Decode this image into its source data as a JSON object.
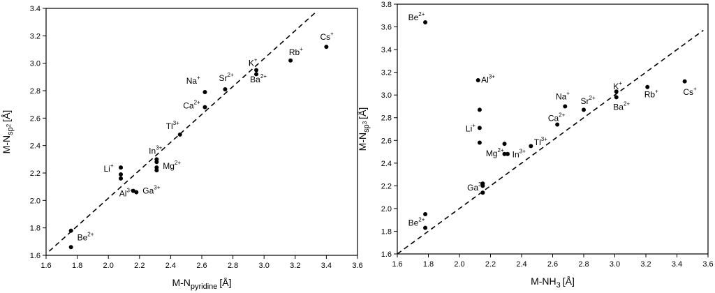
{
  "chart_data": [
    {
      "type": "scatter",
      "xlabel": {
        "main": "M-N",
        "sub": "pyridine",
        "unit": "[Å]"
      },
      "ylabel": {
        "main": "M-N",
        "sub": "sp",
        "subsub": "2",
        "unit": "[Å]"
      },
      "xlim": [
        1.6,
        3.6
      ],
      "ylim": [
        1.6,
        3.4
      ],
      "xticks": [
        "1.6",
        "1.8",
        "2.0",
        "2.2",
        "2.4",
        "2.6",
        "2.8",
        "3.0",
        "3.2",
        "3.4",
        "3.6"
      ],
      "yticks": [
        "1.6",
        "1.8",
        "2.0",
        "2.2",
        "2.4",
        "2.6",
        "2.8",
        "3.0",
        "3.2",
        "3.4"
      ],
      "points": [
        {
          "x": 1.76,
          "y": 1.78
        },
        {
          "x": 1.76,
          "y": 1.66
        },
        {
          "x": 2.08,
          "y": 2.24
        },
        {
          "x": 2.08,
          "y": 2.19
        },
        {
          "x": 2.08,
          "y": 2.16
        },
        {
          "x": 2.16,
          "y": 2.07
        },
        {
          "x": 2.18,
          "y": 2.06
        },
        {
          "x": 2.31,
          "y": 2.3
        },
        {
          "x": 2.31,
          "y": 2.28
        },
        {
          "x": 2.31,
          "y": 2.24
        },
        {
          "x": 2.31,
          "y": 2.22
        },
        {
          "x": 2.46,
          "y": 2.48
        },
        {
          "x": 2.62,
          "y": 2.79
        },
        {
          "x": 2.62,
          "y": 2.68
        },
        {
          "x": 2.75,
          "y": 2.81
        },
        {
          "x": 2.95,
          "y": 2.95
        },
        {
          "x": 2.95,
          "y": 2.92
        },
        {
          "x": 3.17,
          "y": 3.02
        },
        {
          "x": 3.4,
          "y": 3.12
        }
      ],
      "labels": [
        {
          "text": "Be",
          "sup": "2+",
          "x": 1.8,
          "y": 1.71
        },
        {
          "text": "Li",
          "sup": "+",
          "x": 1.97,
          "y": 2.21
        },
        {
          "text": "Al",
          "sup": "3+",
          "x": 2.07,
          "y": 2.03
        },
        {
          "text": "Ga",
          "sup": "3+",
          "x": 2.22,
          "y": 2.05
        },
        {
          "text": "In",
          "sup": "3+",
          "x": 2.26,
          "y": 2.34
        },
        {
          "text": "Mg",
          "sup": "2+",
          "x": 2.35,
          "y": 2.23
        },
        {
          "text": "Tl",
          "sup": "3+",
          "x": 2.37,
          "y": 2.52
        },
        {
          "text": "Ca",
          "sup": "2+",
          "x": 2.48,
          "y": 2.67
        },
        {
          "text": "Na",
          "sup": "+",
          "x": 2.5,
          "y": 2.85
        },
        {
          "text": "Sr",
          "sup": "2+",
          "x": 2.71,
          "y": 2.87
        },
        {
          "text": "K",
          "sup": "+",
          "x": 2.9,
          "y": 2.98
        },
        {
          "text": "Ba",
          "sup": "2+",
          "x": 2.91,
          "y": 2.86
        },
        {
          "text": "Rb",
          "sup": "+",
          "x": 3.16,
          "y": 3.06
        },
        {
          "text": "Cs",
          "sup": "+",
          "x": 3.36,
          "y": 3.17
        }
      ],
      "fit_line": {
        "x1": 1.62,
        "y1": 1.63,
        "x2": 3.33,
        "y2": 3.37
      }
    },
    {
      "type": "scatter",
      "xlabel": {
        "main": "M-NH",
        "sub": "3",
        "unit": "[Å]"
      },
      "ylabel": {
        "main": "M-N",
        "sub": "sp",
        "subsub": "3",
        "unit": "[Å]"
      },
      "xlim": [
        1.6,
        3.6
      ],
      "ylim": [
        1.6,
        3.8
      ],
      "xticks": [
        "1.6",
        "1.8",
        "2.0",
        "2.2",
        "2.4",
        "2.6",
        "2.8",
        "3.0",
        "3.2",
        "3.4",
        "3.6"
      ],
      "yticks": [
        "1.6",
        "1.8",
        "2.0",
        "2.2",
        "2.4",
        "2.6",
        "2.8",
        "3.0",
        "3.2",
        "3.4",
        "3.6",
        "3.8"
      ],
      "points": [
        {
          "x": 1.78,
          "y": 3.64
        },
        {
          "x": 1.78,
          "y": 1.95
        },
        {
          "x": 1.78,
          "y": 1.83
        },
        {
          "x": 2.12,
          "y": 3.13
        },
        {
          "x": 2.13,
          "y": 2.87
        },
        {
          "x": 2.13,
          "y": 2.71
        },
        {
          "x": 2.13,
          "y": 2.58
        },
        {
          "x": 2.15,
          "y": 2.22
        },
        {
          "x": 2.15,
          "y": 2.2
        },
        {
          "x": 2.15,
          "y": 2.14
        },
        {
          "x": 2.29,
          "y": 2.57
        },
        {
          "x": 2.29,
          "y": 2.48
        },
        {
          "x": 2.31,
          "y": 2.48
        },
        {
          "x": 2.46,
          "y": 2.55
        },
        {
          "x": 2.63,
          "y": 2.74
        },
        {
          "x": 2.68,
          "y": 2.9
        },
        {
          "x": 2.8,
          "y": 2.87
        },
        {
          "x": 3.01,
          "y": 3.03
        },
        {
          "x": 3.01,
          "y": 2.98
        },
        {
          "x": 3.21,
          "y": 3.07
        },
        {
          "x": 3.45,
          "y": 3.12
        }
      ],
      "labels": [
        {
          "text": "Be",
          "sup": "2+",
          "x": 1.67,
          "y": 3.66
        },
        {
          "text": "Al",
          "sup": "3+",
          "x": 2.14,
          "y": 3.11
        },
        {
          "text": "Li",
          "sup": "+",
          "x": 2.04,
          "y": 2.68
        },
        {
          "text": "Ga",
          "sup": "3+",
          "x": 2.05,
          "y": 2.16
        },
        {
          "text": "Be",
          "sup": "2+",
          "x": 1.67,
          "y": 1.85
        },
        {
          "text": "Mg",
          "sup": "2+",
          "x": 2.17,
          "y": 2.46
        },
        {
          "text": "In",
          "sup": "3+",
          "x": 2.34,
          "y": 2.45
        },
        {
          "text": "Tl",
          "sup": "3+",
          "x": 2.48,
          "y": 2.56
        },
        {
          "text": "Ca",
          "sup": "2+",
          "x": 2.57,
          "y": 2.77
        },
        {
          "text": "Na",
          "sup": "+",
          "x": 2.62,
          "y": 2.96
        },
        {
          "text": "Sr",
          "sup": "2+",
          "x": 2.78,
          "y": 2.92
        },
        {
          "text": "K",
          "sup": "+",
          "x": 2.99,
          "y": 3.05
        },
        {
          "text": "Ba",
          "sup": "2+",
          "x": 2.99,
          "y": 2.87
        },
        {
          "text": "Rb",
          "sup": "+",
          "x": 3.19,
          "y": 2.98
        },
        {
          "text": "Cs",
          "sup": "+",
          "x": 3.44,
          "y": 3.0
        }
      ],
      "fit_line": {
        "x1": 1.6,
        "y1": 1.6,
        "x2": 3.57,
        "y2": 3.57
      }
    }
  ]
}
